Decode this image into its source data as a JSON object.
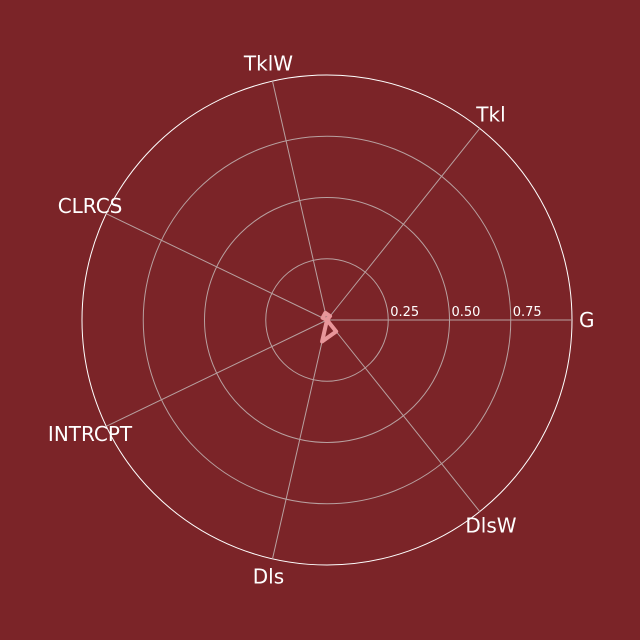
{
  "chart_data": {
    "type": "radar",
    "axes": [
      "G",
      "Tkl",
      "TklW",
      "CLRCS",
      "INTRCPT",
      "Dls",
      "DlsW"
    ],
    "rlim": [
      0,
      1
    ],
    "rticks": [
      0.25,
      0.5,
      0.75
    ],
    "rtick_labels": [
      "0.25",
      "0.50",
      "0.75"
    ],
    "series": [
      {
        "values": [
          0.0,
          0.02,
          0.03,
          0.02,
          0.0,
          0.09,
          0.06
        ]
      }
    ],
    "grid": true,
    "legend": "none"
  },
  "colors": {
    "background": "#7b2428",
    "grid_inner": "#b8a0a0",
    "outer_ring": "#ffffff",
    "series_line": "#e8969a"
  }
}
